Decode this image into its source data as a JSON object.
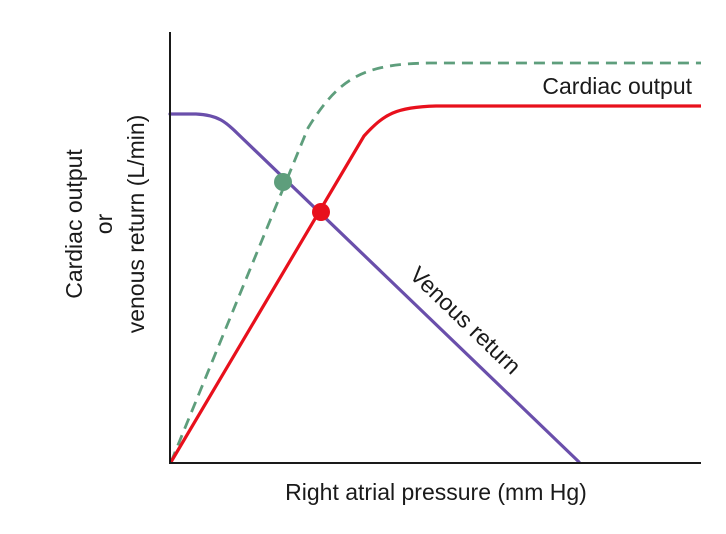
{
  "chart_data": {
    "type": "line",
    "xlabel": "Right atrial pressure (mm Hg)",
    "ylabel_lines": [
      "Cardiac output",
      "or",
      "venous return (L/min)"
    ],
    "curve_labels": {
      "cardiac_output": "Cardiac output",
      "venous_return": "Venous return"
    },
    "colors": {
      "cardiac_output": "#e8101c",
      "cardiac_output_shifted": "#5e9e7c",
      "venous_return": "#6a4fab",
      "axis": "#1a1a1a"
    },
    "series": [
      {
        "key": "venous_return",
        "style": "solid"
      },
      {
        "key": "cardiac_output",
        "style": "solid"
      },
      {
        "key": "cardiac_output_shifted",
        "style": "dashed"
      }
    ],
    "markers": [
      {
        "series": "cardiac_output_shifted",
        "description": "equilibrium point (shifted)"
      },
      {
        "series": "cardiac_output",
        "description": "equilibrium point"
      }
    ]
  }
}
